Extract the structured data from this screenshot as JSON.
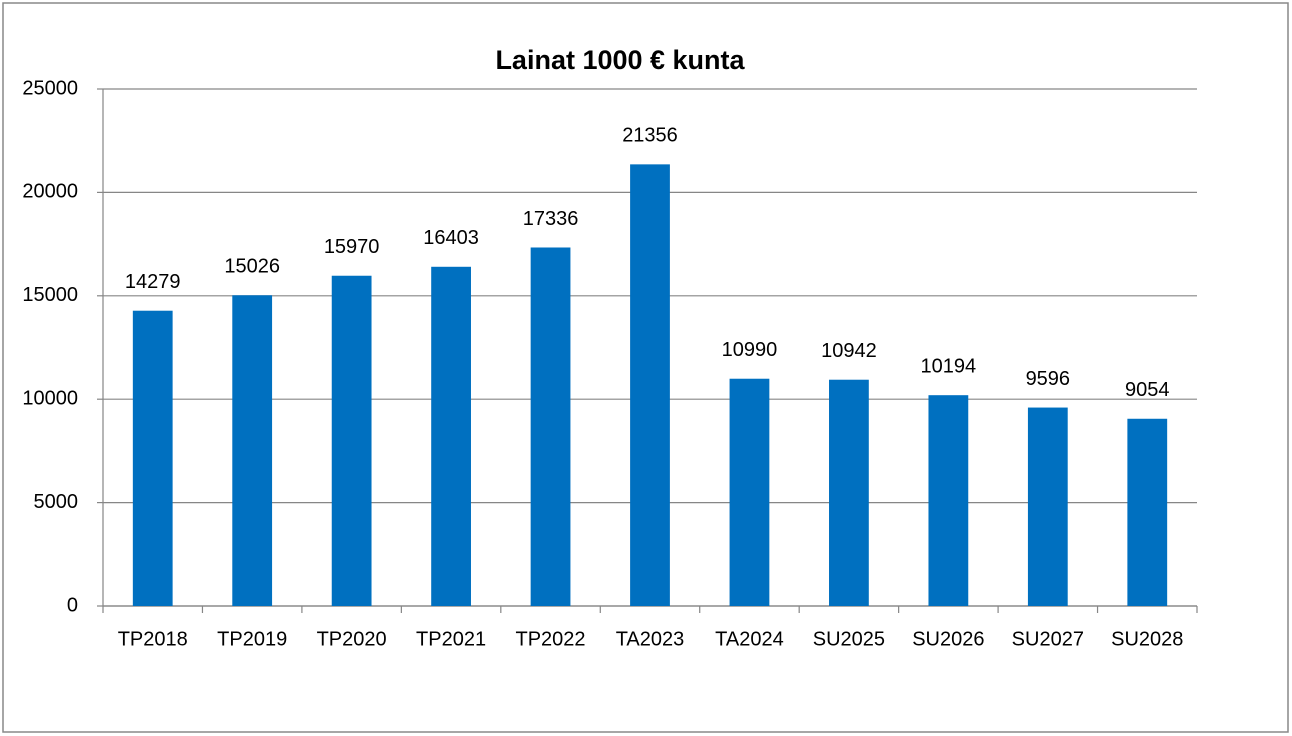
{
  "chart_data": {
    "type": "bar",
    "title": "Lainat 1000 € kunta",
    "categories": [
      "TP2018",
      "TP2019",
      "TP2020",
      "TP2021",
      "TP2022",
      "TA2023",
      "TA2024",
      "SU2025",
      "SU2026",
      "SU2027",
      "SU2028"
    ],
    "values": [
      14279,
      15026,
      15970,
      16403,
      17336,
      21356,
      10990,
      10942,
      10194,
      9596,
      9054
    ],
    "color": "#0070c0",
    "ylim": [
      0,
      25000
    ],
    "yticks": [
      0,
      5000,
      10000,
      15000,
      20000,
      25000
    ],
    "grid": true,
    "data_labels": true
  }
}
